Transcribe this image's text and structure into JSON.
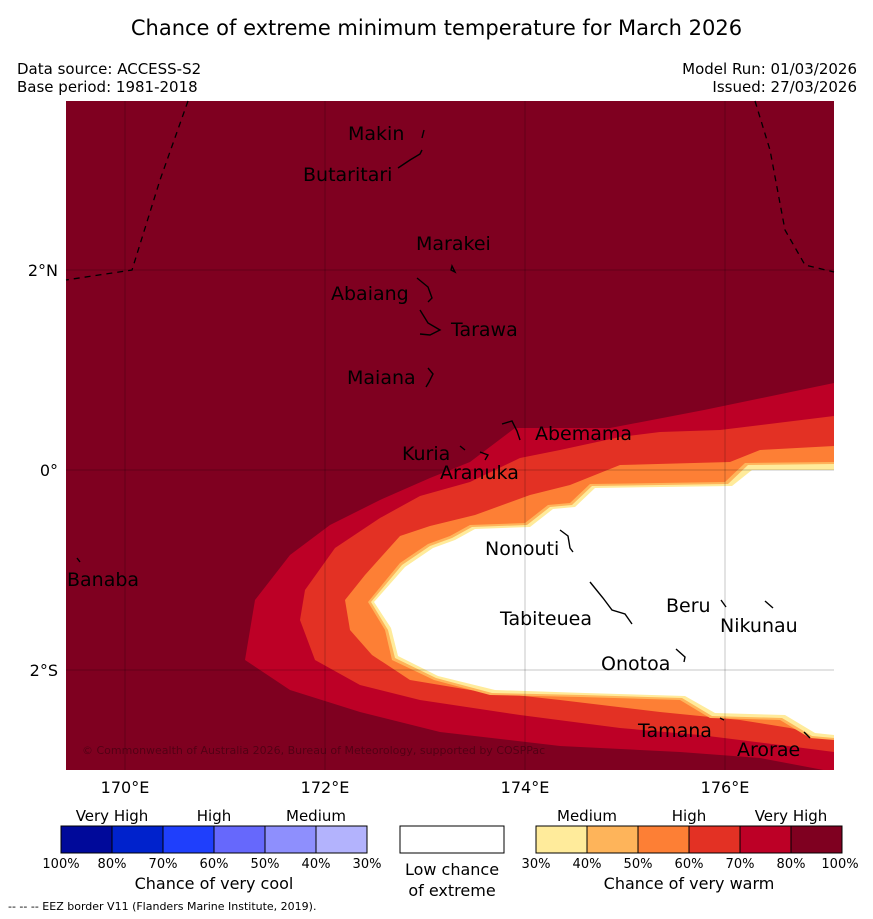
{
  "title": "Chance of extreme minimum temperature for March 2026",
  "data_source": "Data source: ACCESS-S2",
  "base_period": "Base period: 1981-2018",
  "model_run": "Model Run: 01/03/2026",
  "issued": "Issued: 27/03/2026",
  "copyright": "© Commonwealth of Australia 2026, Bureau of Meteorology, supported by COSPPac",
  "footnote": "-- -- -- EEZ border V11 (Flanders Marine Institute, 2019).",
  "axis": {
    "lat_labels": [
      "2°N",
      "0°",
      "2°S"
    ],
    "lon_labels": [
      "170°E",
      "172°E",
      "174°E",
      "176°E"
    ]
  },
  "places": [
    "Makin",
    "Butaritari",
    "Marakei",
    "Abaiang",
    "Tarawa",
    "Maiana",
    "Abemama",
    "Kuria",
    "Aranuka",
    "Nonouti",
    "Banaba",
    "Tabiteuea",
    "Beru",
    "Nikunau",
    "Onotoa",
    "Tamana",
    "Arorae"
  ],
  "colors": {
    "very_warm_100": "#7f0020",
    "very_warm_80": "#bd0026",
    "high_70": "#e33124",
    "high_60": "#fd7f35",
    "medium_50": "#feb45a",
    "medium_40": "#ffeb9b",
    "low": "#ffffff"
  },
  "legend": {
    "cool": {
      "categories": [
        "Very High",
        "High",
        "Medium"
      ],
      "ticks": [
        "100%",
        "80%",
        "70%",
        "60%",
        "50%",
        "40%",
        "30%"
      ],
      "title": "Chance of very cool",
      "colors": [
        "#00099a",
        "#0022cc",
        "#1f3ffc",
        "#6668fc",
        "#8e8ffd",
        "#b3b3fd"
      ]
    },
    "low": {
      "title_line1": "Low chance",
      "title_line2": "of extreme"
    },
    "warm": {
      "categories": [
        "Medium",
        "High",
        "Very High"
      ],
      "ticks": [
        "30%",
        "40%",
        "50%",
        "60%",
        "70%",
        "80%",
        "100%"
      ],
      "title": "Chance of very warm",
      "colors": [
        "#ffeb9b",
        "#feb45a",
        "#fd7f35",
        "#e33124",
        "#bd0026",
        "#7f0020"
      ]
    }
  }
}
